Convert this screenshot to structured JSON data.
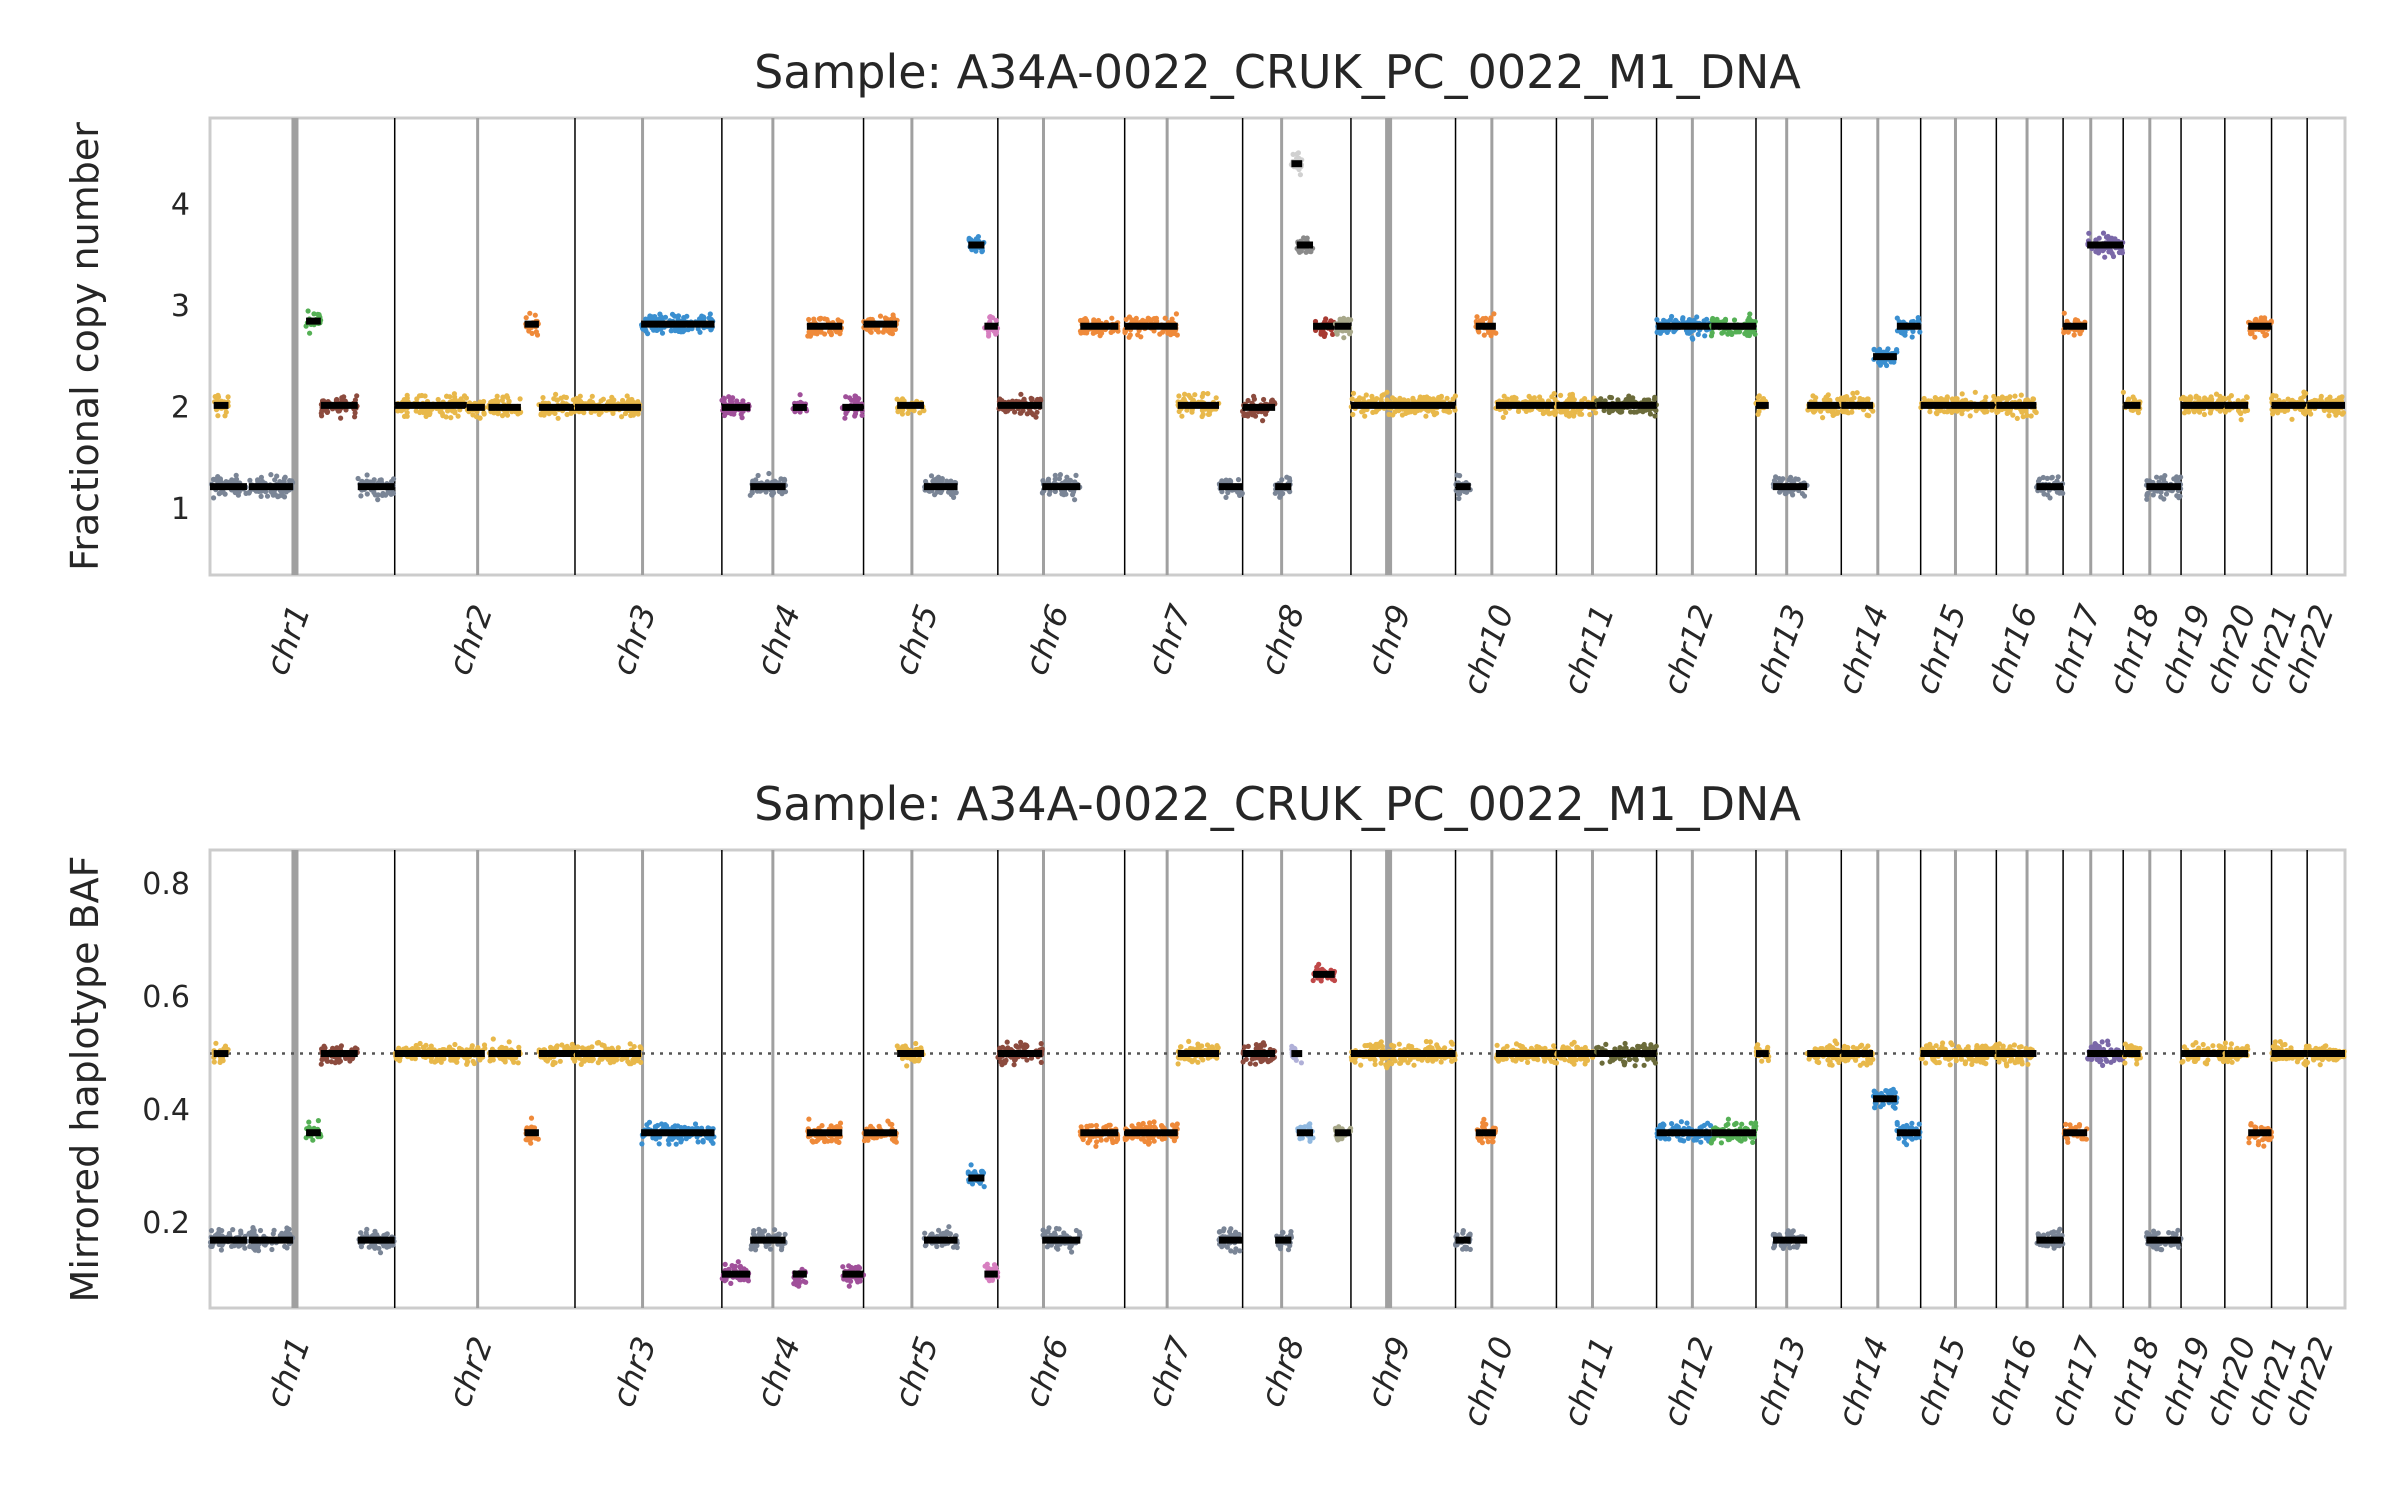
{
  "chart_data": [
    {
      "type": "scatter",
      "title": "Sample: A34A-0022_CRUK_PC_0022_M1_DNA",
      "xlabel": "",
      "ylabel": "Fractional copy number",
      "ylim": [
        0.35,
        4.85
      ],
      "yticks": [
        1,
        2,
        3,
        4
      ],
      "grid": false,
      "reference_line": null,
      "categories": [
        "chr1",
        "chr2",
        "chr3",
        "chr4",
        "chr5",
        "chr6",
        "chr7",
        "chr8",
        "chr9",
        "chr10",
        "chr11",
        "chr12",
        "chr13",
        "chr14",
        "chr15",
        "chr16",
        "chr17",
        "chr18",
        "chr19",
        "chr20",
        "chr21",
        "chr22"
      ],
      "segments": [
        {
          "chr": "chr1",
          "start": 0.0,
          "end": 0.2,
          "value": 1.22,
          "color": "#7a8596"
        },
        {
          "chr": "chr1",
          "start": 0.02,
          "end": 0.1,
          "value": 2.02,
          "color": "#e8b84a"
        },
        {
          "chr": "chr1",
          "start": 0.21,
          "end": 0.45,
          "value": 1.22,
          "color": "#7a8596"
        },
        {
          "chr": "chr1",
          "start": 0.52,
          "end": 0.6,
          "value": 2.85,
          "color": "#55b055"
        },
        {
          "chr": "chr1",
          "start": 0.6,
          "end": 0.8,
          "value": 2.02,
          "color": "#8c4b3e"
        },
        {
          "chr": "chr1",
          "start": 0.8,
          "end": 1.0,
          "value": 1.22,
          "color": "#7a8596"
        },
        {
          "chr": "chr2",
          "start": 0.0,
          "end": 0.4,
          "value": 2.02,
          "color": "#e8b84a"
        },
        {
          "chr": "chr2",
          "start": 0.4,
          "end": 0.5,
          "value": 2.0,
          "color": "#e8b84a"
        },
        {
          "chr": "chr2",
          "start": 0.52,
          "end": 0.7,
          "value": 2.0,
          "color": "#e8b84a"
        },
        {
          "chr": "chr2",
          "start": 0.72,
          "end": 0.8,
          "value": 2.82,
          "color": "#ef8a3a"
        },
        {
          "chr": "chr2",
          "start": 0.8,
          "end": 1.0,
          "value": 2.0,
          "color": "#e8b84a"
        },
        {
          "chr": "chr3",
          "start": 0.0,
          "end": 0.45,
          "value": 2.0,
          "color": "#e8b84a"
        },
        {
          "chr": "chr3",
          "start": 0.45,
          "end": 0.95,
          "value": 2.82,
          "color": "#3a8fd0"
        },
        {
          "chr": "chr4",
          "start": 0.0,
          "end": 0.2,
          "value": 2.0,
          "color": "#a0509a"
        },
        {
          "chr": "chr4",
          "start": 0.2,
          "end": 0.45,
          "value": 1.22,
          "color": "#7a8596"
        },
        {
          "chr": "chr4",
          "start": 0.5,
          "end": 0.6,
          "value": 2.0,
          "color": "#a0509a"
        },
        {
          "chr": "chr4",
          "start": 0.6,
          "end": 0.85,
          "value": 2.8,
          "color": "#ef8a3a"
        },
        {
          "chr": "chr4",
          "start": 0.85,
          "end": 1.0,
          "value": 2.0,
          "color": "#a0509a"
        },
        {
          "chr": "chr5",
          "start": 0.0,
          "end": 0.25,
          "value": 2.82,
          "color": "#ef8a3a"
        },
        {
          "chr": "chr5",
          "start": 0.25,
          "end": 0.45,
          "value": 2.02,
          "color": "#e8b84a"
        },
        {
          "chr": "chr5",
          "start": 0.45,
          "end": 0.7,
          "value": 1.22,
          "color": "#7a8596"
        },
        {
          "chr": "chr5",
          "start": 0.78,
          "end": 0.9,
          "value": 3.6,
          "color": "#3a8fd0"
        },
        {
          "chr": "chr5",
          "start": 0.9,
          "end": 1.0,
          "value": 2.8,
          "color": "#d77fc0"
        },
        {
          "chr": "chr6",
          "start": 0.0,
          "end": 0.35,
          "value": 2.02,
          "color": "#8c4b3e"
        },
        {
          "chr": "chr6",
          "start": 0.35,
          "end": 0.65,
          "value": 1.22,
          "color": "#7a8596"
        },
        {
          "chr": "chr6",
          "start": 0.65,
          "end": 0.95,
          "value": 2.8,
          "color": "#ef8a3a"
        },
        {
          "chr": "chr7",
          "start": 0.0,
          "end": 0.45,
          "value": 2.8,
          "color": "#ef8a3a"
        },
        {
          "chr": "chr7",
          "start": 0.45,
          "end": 0.8,
          "value": 2.02,
          "color": "#e8b84a"
        },
        {
          "chr": "chr7",
          "start": 0.8,
          "end": 1.0,
          "value": 1.22,
          "color": "#7a8596"
        },
        {
          "chr": "chr8",
          "start": 0.0,
          "end": 0.3,
          "value": 2.0,
          "color": "#8c4b3e"
        },
        {
          "chr": "chr8",
          "start": 0.3,
          "end": 0.45,
          "value": 1.22,
          "color": "#7a8596"
        },
        {
          "chr": "chr8",
          "start": 0.45,
          "end": 0.55,
          "value": 4.4,
          "color": "#d0d0d0"
        },
        {
          "chr": "chr8",
          "start": 0.5,
          "end": 0.65,
          "value": 3.6,
          "color": "#8a8a8a"
        },
        {
          "chr": "chr8",
          "start": 0.65,
          "end": 0.85,
          "value": 2.8,
          "color": "#a83a32"
        },
        {
          "chr": "chr8",
          "start": 0.85,
          "end": 1.0,
          "value": 2.8,
          "color": "#a8a88a"
        },
        {
          "chr": "chr9",
          "start": 0.0,
          "end": 1.0,
          "value": 2.02,
          "color": "#e8b84a"
        },
        {
          "chr": "chr10",
          "start": 0.0,
          "end": 0.15,
          "value": 1.22,
          "color": "#7a8596"
        },
        {
          "chr": "chr10",
          "start": 0.2,
          "end": 0.4,
          "value": 2.8,
          "color": "#ef8a3a"
        },
        {
          "chr": "chr10",
          "start": 0.4,
          "end": 1.0,
          "value": 2.02,
          "color": "#e8b84a"
        },
        {
          "chr": "chr11",
          "start": 0.0,
          "end": 0.4,
          "value": 2.02,
          "color": "#e8b84a"
        },
        {
          "chr": "chr11",
          "start": 0.4,
          "end": 1.0,
          "value": 2.02,
          "color": "#6b6b3a"
        },
        {
          "chr": "chr12",
          "start": 0.0,
          "end": 0.55,
          "value": 2.8,
          "color": "#3a8fd0"
        },
        {
          "chr": "chr12",
          "start": 0.55,
          "end": 1.0,
          "value": 2.8,
          "color": "#55b055"
        },
        {
          "chr": "chr13",
          "start": 0.0,
          "end": 0.15,
          "value": 2.02,
          "color": "#e8b84a"
        },
        {
          "chr": "chr13",
          "start": 0.2,
          "end": 0.6,
          "value": 1.22,
          "color": "#7a8596"
        },
        {
          "chr": "chr13",
          "start": 0.6,
          "end": 1.0,
          "value": 2.02,
          "color": "#e8b84a"
        },
        {
          "chr": "chr14",
          "start": 0.0,
          "end": 0.4,
          "value": 2.02,
          "color": "#e8b84a"
        },
        {
          "chr": "chr14",
          "start": 0.4,
          "end": 0.7,
          "value": 2.5,
          "color": "#3a8fd0"
        },
        {
          "chr": "chr14",
          "start": 0.7,
          "end": 1.0,
          "value": 2.8,
          "color": "#3a8fd0"
        },
        {
          "chr": "chr15",
          "start": 0.0,
          "end": 1.0,
          "value": 2.02,
          "color": "#e8b84a"
        },
        {
          "chr": "chr16",
          "start": 0.0,
          "end": 0.6,
          "value": 2.02,
          "color": "#e8b84a"
        },
        {
          "chr": "chr16",
          "start": 0.6,
          "end": 1.0,
          "value": 1.22,
          "color": "#7a8596"
        },
        {
          "chr": "chr17",
          "start": 0.0,
          "end": 0.4,
          "value": 2.8,
          "color": "#ef8a3a"
        },
        {
          "chr": "chr17",
          "start": 0.4,
          "end": 1.0,
          "value": 3.6,
          "color": "#7a68a8"
        },
        {
          "chr": "chr18",
          "start": 0.0,
          "end": 0.3,
          "value": 2.02,
          "color": "#e8b84a"
        },
        {
          "chr": "chr18",
          "start": 0.4,
          "end": 1.0,
          "value": 1.22,
          "color": "#7a8596"
        },
        {
          "chr": "chr19",
          "start": 0.0,
          "end": 1.0,
          "value": 2.02,
          "color": "#e8b84a"
        },
        {
          "chr": "chr20",
          "start": 0.0,
          "end": 0.5,
          "value": 2.02,
          "color": "#e8b84a"
        },
        {
          "chr": "chr20",
          "start": 0.5,
          "end": 1.0,
          "value": 2.8,
          "color": "#ef8a3a"
        },
        {
          "chr": "chr21",
          "start": 0.0,
          "end": 1.0,
          "value": 2.02,
          "color": "#e8b84a"
        },
        {
          "chr": "chr22",
          "start": 0.0,
          "end": 1.0,
          "value": 2.02,
          "color": "#e8b84a"
        }
      ]
    },
    {
      "type": "scatter",
      "title": "Sample: A34A-0022_CRUK_PC_0022_M1_DNA",
      "xlabel": "",
      "ylabel": "Mirrored haplotype BAF",
      "ylim": [
        0.05,
        0.86
      ],
      "yticks": [
        0.2,
        0.4,
        0.6,
        0.8
      ],
      "grid": false,
      "reference_line": 0.5,
      "categories": [
        "chr1",
        "chr2",
        "chr3",
        "chr4",
        "chr5",
        "chr6",
        "chr7",
        "chr8",
        "chr9",
        "chr10",
        "chr11",
        "chr12",
        "chr13",
        "chr14",
        "chr15",
        "chr16",
        "chr17",
        "chr18",
        "chr19",
        "chr20",
        "chr21",
        "chr22"
      ],
      "segments": [
        {
          "chr": "chr1",
          "start": 0.0,
          "end": 0.2,
          "value": 0.17,
          "color": "#7a8596"
        },
        {
          "chr": "chr1",
          "start": 0.02,
          "end": 0.1,
          "value": 0.5,
          "color": "#e8b84a"
        },
        {
          "chr": "chr1",
          "start": 0.21,
          "end": 0.45,
          "value": 0.17,
          "color": "#7a8596"
        },
        {
          "chr": "chr1",
          "start": 0.52,
          "end": 0.6,
          "value": 0.36,
          "color": "#55b055"
        },
        {
          "chr": "chr1",
          "start": 0.6,
          "end": 0.8,
          "value": 0.5,
          "color": "#8c4b3e"
        },
        {
          "chr": "chr1",
          "start": 0.8,
          "end": 1.0,
          "value": 0.17,
          "color": "#7a8596"
        },
        {
          "chr": "chr2",
          "start": 0.0,
          "end": 0.5,
          "value": 0.5,
          "color": "#e8b84a"
        },
        {
          "chr": "chr2",
          "start": 0.52,
          "end": 0.7,
          "value": 0.5,
          "color": "#e8b84a"
        },
        {
          "chr": "chr2",
          "start": 0.72,
          "end": 0.8,
          "value": 0.36,
          "color": "#ef8a3a"
        },
        {
          "chr": "chr2",
          "start": 0.8,
          "end": 1.0,
          "value": 0.5,
          "color": "#e8b84a"
        },
        {
          "chr": "chr3",
          "start": 0.0,
          "end": 0.45,
          "value": 0.5,
          "color": "#e8b84a"
        },
        {
          "chr": "chr3",
          "start": 0.45,
          "end": 0.95,
          "value": 0.36,
          "color": "#3a8fd0"
        },
        {
          "chr": "chr4",
          "start": 0.0,
          "end": 0.2,
          "value": 0.11,
          "color": "#a0509a"
        },
        {
          "chr": "chr4",
          "start": 0.2,
          "end": 0.45,
          "value": 0.17,
          "color": "#7a8596"
        },
        {
          "chr": "chr4",
          "start": 0.5,
          "end": 0.6,
          "value": 0.11,
          "color": "#a0509a"
        },
        {
          "chr": "chr4",
          "start": 0.6,
          "end": 0.85,
          "value": 0.36,
          "color": "#ef8a3a"
        },
        {
          "chr": "chr4",
          "start": 0.85,
          "end": 1.0,
          "value": 0.11,
          "color": "#a0509a"
        },
        {
          "chr": "chr5",
          "start": 0.0,
          "end": 0.25,
          "value": 0.36,
          "color": "#ef8a3a"
        },
        {
          "chr": "chr5",
          "start": 0.25,
          "end": 0.45,
          "value": 0.5,
          "color": "#e8b84a"
        },
        {
          "chr": "chr5",
          "start": 0.45,
          "end": 0.7,
          "value": 0.17,
          "color": "#7a8596"
        },
        {
          "chr": "chr5",
          "start": 0.78,
          "end": 0.9,
          "value": 0.28,
          "color": "#3a8fd0"
        },
        {
          "chr": "chr5",
          "start": 0.9,
          "end": 1.0,
          "value": 0.11,
          "color": "#d77fc0"
        },
        {
          "chr": "chr6",
          "start": 0.0,
          "end": 0.35,
          "value": 0.5,
          "color": "#8c4b3e"
        },
        {
          "chr": "chr6",
          "start": 0.35,
          "end": 0.65,
          "value": 0.17,
          "color": "#7a8596"
        },
        {
          "chr": "chr6",
          "start": 0.65,
          "end": 0.95,
          "value": 0.36,
          "color": "#ef8a3a"
        },
        {
          "chr": "chr7",
          "start": 0.0,
          "end": 0.45,
          "value": 0.36,
          "color": "#ef8a3a"
        },
        {
          "chr": "chr7",
          "start": 0.45,
          "end": 0.8,
          "value": 0.5,
          "color": "#e8b84a"
        },
        {
          "chr": "chr7",
          "start": 0.8,
          "end": 1.0,
          "value": 0.17,
          "color": "#7a8596"
        },
        {
          "chr": "chr8",
          "start": 0.0,
          "end": 0.3,
          "value": 0.5,
          "color": "#8c4b3e"
        },
        {
          "chr": "chr8",
          "start": 0.3,
          "end": 0.45,
          "value": 0.17,
          "color": "#7a8596"
        },
        {
          "chr": "chr8",
          "start": 0.45,
          "end": 0.55,
          "value": 0.5,
          "color": "#b0b0d8"
        },
        {
          "chr": "chr8",
          "start": 0.5,
          "end": 0.65,
          "value": 0.36,
          "color": "#8fb8e0"
        },
        {
          "chr": "chr8",
          "start": 0.65,
          "end": 0.85,
          "value": 0.64,
          "color": "#c04848"
        },
        {
          "chr": "chr8",
          "start": 0.85,
          "end": 1.0,
          "value": 0.36,
          "color": "#a8a88a"
        },
        {
          "chr": "chr9",
          "start": 0.0,
          "end": 1.0,
          "value": 0.5,
          "color": "#e8b84a"
        },
        {
          "chr": "chr10",
          "start": 0.0,
          "end": 0.15,
          "value": 0.17,
          "color": "#7a8596"
        },
        {
          "chr": "chr10",
          "start": 0.2,
          "end": 0.4,
          "value": 0.36,
          "color": "#ef8a3a"
        },
        {
          "chr": "chr10",
          "start": 0.4,
          "end": 1.0,
          "value": 0.5,
          "color": "#e8b84a"
        },
        {
          "chr": "chr11",
          "start": 0.0,
          "end": 0.4,
          "value": 0.5,
          "color": "#e8b84a"
        },
        {
          "chr": "chr11",
          "start": 0.4,
          "end": 1.0,
          "value": 0.5,
          "color": "#6b6b3a"
        },
        {
          "chr": "chr12",
          "start": 0.0,
          "end": 0.55,
          "value": 0.36,
          "color": "#3a8fd0"
        },
        {
          "chr": "chr12",
          "start": 0.55,
          "end": 1.0,
          "value": 0.36,
          "color": "#55b055"
        },
        {
          "chr": "chr13",
          "start": 0.0,
          "end": 0.15,
          "value": 0.5,
          "color": "#e8b84a"
        },
        {
          "chr": "chr13",
          "start": 0.2,
          "end": 0.6,
          "value": 0.17,
          "color": "#7a8596"
        },
        {
          "chr": "chr13",
          "start": 0.6,
          "end": 1.0,
          "value": 0.5,
          "color": "#e8b84a"
        },
        {
          "chr": "chr14",
          "start": 0.0,
          "end": 0.4,
          "value": 0.5,
          "color": "#e8b84a"
        },
        {
          "chr": "chr14",
          "start": 0.4,
          "end": 0.7,
          "value": 0.42,
          "color": "#3a8fd0"
        },
        {
          "chr": "chr14",
          "start": 0.7,
          "end": 1.0,
          "value": 0.36,
          "color": "#3a8fd0"
        },
        {
          "chr": "chr15",
          "start": 0.0,
          "end": 1.0,
          "value": 0.5,
          "color": "#e8b84a"
        },
        {
          "chr": "chr16",
          "start": 0.0,
          "end": 0.6,
          "value": 0.5,
          "color": "#e8b84a"
        },
        {
          "chr": "chr16",
          "start": 0.6,
          "end": 1.0,
          "value": 0.17,
          "color": "#7a8596"
        },
        {
          "chr": "chr17",
          "start": 0.0,
          "end": 0.4,
          "value": 0.36,
          "color": "#ef8a3a"
        },
        {
          "chr": "chr17",
          "start": 0.4,
          "end": 1.0,
          "value": 0.5,
          "color": "#7a68a8"
        },
        {
          "chr": "chr18",
          "start": 0.0,
          "end": 0.3,
          "value": 0.5,
          "color": "#e8b84a"
        },
        {
          "chr": "chr18",
          "start": 0.4,
          "end": 1.0,
          "value": 0.17,
          "color": "#7a8596"
        },
        {
          "chr": "chr19",
          "start": 0.0,
          "end": 1.0,
          "value": 0.5,
          "color": "#e8b84a"
        },
        {
          "chr": "chr20",
          "start": 0.0,
          "end": 0.5,
          "value": 0.5,
          "color": "#e8b84a"
        },
        {
          "chr": "chr20",
          "start": 0.5,
          "end": 1.0,
          "value": 0.36,
          "color": "#ef8a3a"
        },
        {
          "chr": "chr21",
          "start": 0.0,
          "end": 1.0,
          "value": 0.5,
          "color": "#e8b84a"
        },
        {
          "chr": "chr22",
          "start": 0.0,
          "end": 1.0,
          "value": 0.5,
          "color": "#e8b84a"
        }
      ]
    }
  ]
}
